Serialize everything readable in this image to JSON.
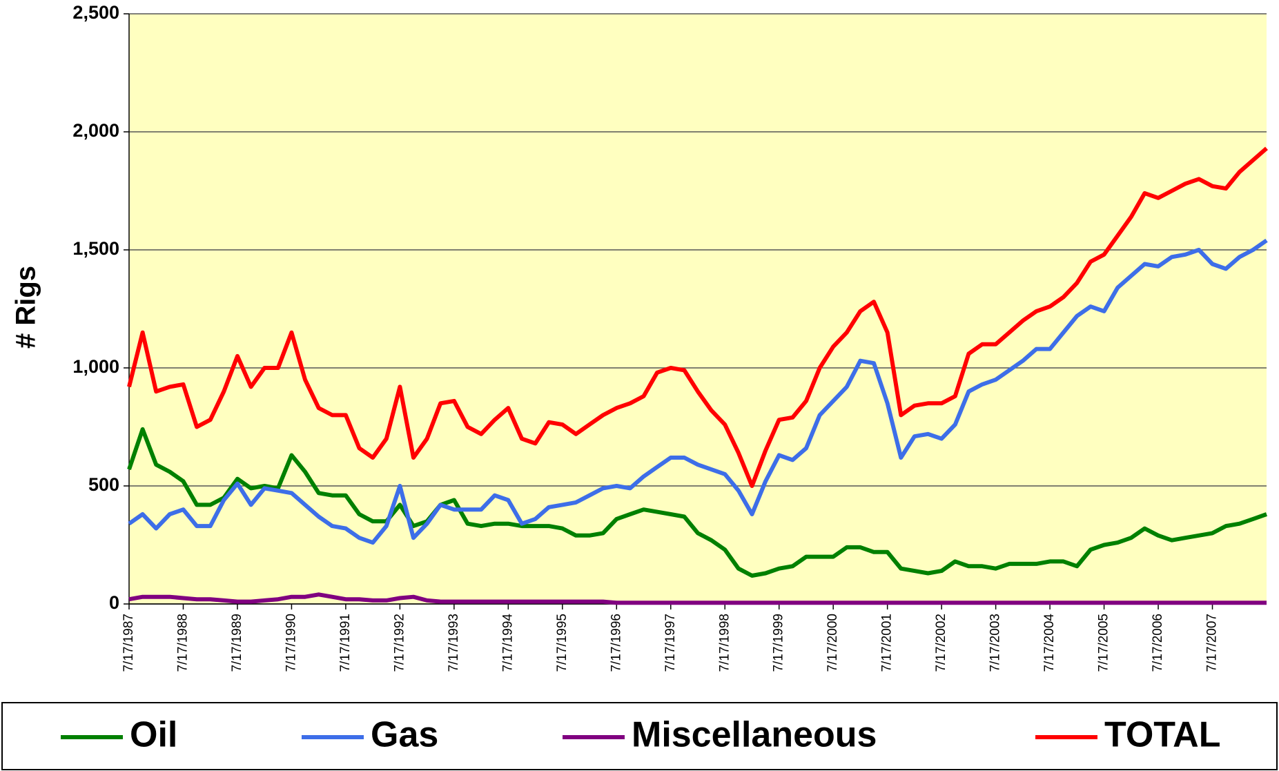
{
  "chart_data": {
    "type": "line",
    "y_label": "# Rigs",
    "categories": [
      "7/17/1987",
      null,
      null,
      null,
      "7/17/1988",
      null,
      null,
      null,
      "7/17/1989",
      null,
      null,
      null,
      "7/17/1990",
      null,
      null,
      null,
      "7/17/1991",
      null,
      null,
      null,
      "7/17/1992",
      null,
      null,
      null,
      "7/17/1993",
      null,
      null,
      null,
      "7/17/1994",
      null,
      null,
      null,
      "7/17/1995",
      null,
      null,
      null,
      "7/17/1996",
      null,
      null,
      null,
      "7/17/1997",
      null,
      null,
      null,
      "7/17/1998",
      null,
      null,
      null,
      "7/17/1999",
      null,
      null,
      null,
      "7/17/2000",
      null,
      null,
      null,
      "7/17/2001",
      null,
      null,
      null,
      "7/17/2002",
      null,
      null,
      null,
      "7/17/2003",
      null,
      null,
      null,
      "7/17/2004",
      null,
      null,
      null,
      "7/17/2005",
      null,
      null,
      null,
      "7/17/2006",
      null,
      null,
      null,
      "7/17/2007",
      null,
      null,
      null,
      null
    ],
    "series": [
      {
        "name": "Oil",
        "color": "#008000",
        "values": [
          570,
          740,
          590,
          560,
          520,
          420,
          420,
          450,
          530,
          490,
          500,
          490,
          630,
          560,
          470,
          460,
          460,
          380,
          350,
          350,
          420,
          330,
          350,
          420,
          440,
          340,
          330,
          340,
          340,
          330,
          330,
          330,
          320,
          290,
          290,
          300,
          360,
          380,
          400,
          390,
          380,
          370,
          300,
          270,
          230,
          150,
          120,
          130,
          150,
          160,
          200,
          200,
          200,
          240,
          240,
          220,
          220,
          150,
          140,
          130,
          140,
          180,
          160,
          160,
          150,
          170,
          170,
          170,
          180,
          180,
          160,
          230,
          250,
          260,
          280,
          320,
          290,
          270,
          280,
          290,
          300,
          330,
          340,
          360,
          380
        ]
      },
      {
        "name": "Gas",
        "color": "#3d6ee8",
        "values": [
          340,
          380,
          320,
          380,
          400,
          330,
          330,
          440,
          510,
          420,
          490,
          480,
          470,
          420,
          370,
          330,
          320,
          280,
          260,
          330,
          500,
          280,
          340,
          420,
          400,
          400,
          400,
          460,
          440,
          340,
          360,
          410,
          420,
          430,
          460,
          490,
          500,
          490,
          540,
          580,
          620,
          620,
          590,
          570,
          550,
          480,
          380,
          520,
          630,
          610,
          660,
          800,
          860,
          920,
          1030,
          1020,
          850,
          620,
          710,
          720,
          700,
          760,
          900,
          930,
          950,
          990,
          1030,
          1080,
          1080,
          1150,
          1220,
          1260,
          1240,
          1340,
          1390,
          1440,
          1430,
          1470,
          1480,
          1500,
          1440,
          1420,
          1470,
          1500,
          1540
        ]
      },
      {
        "name": "Miscellaneous",
        "color": "#800080",
        "values": [
          20,
          30,
          30,
          30,
          25,
          20,
          20,
          15,
          10,
          10,
          15,
          20,
          30,
          30,
          40,
          30,
          20,
          20,
          15,
          15,
          25,
          30,
          15,
          10,
          10,
          10,
          10,
          10,
          10,
          10,
          10,
          10,
          10,
          10,
          10,
          10,
          5,
          5,
          5,
          5,
          5,
          5,
          5,
          5,
          5,
          5,
          5,
          5,
          5,
          5,
          5,
          5,
          5,
          5,
          5,
          5,
          5,
          5,
          5,
          5,
          5,
          5,
          5,
          5,
          5,
          5,
          5,
          5,
          5,
          5,
          5,
          5,
          5,
          5,
          5,
          5,
          5,
          5,
          5,
          5,
          5,
          5,
          5,
          5,
          5
        ]
      },
      {
        "name": "TOTAL",
        "color": "#ff0000",
        "values": [
          920,
          1150,
          900,
          920,
          930,
          750,
          780,
          900,
          1050,
          920,
          1000,
          1000,
          1150,
          950,
          830,
          800,
          800,
          660,
          620,
          700,
          920,
          620,
          700,
          850,
          860,
          750,
          720,
          780,
          830,
          700,
          680,
          770,
          760,
          720,
          760,
          800,
          830,
          850,
          880,
          980,
          1000,
          990,
          900,
          820,
          760,
          640,
          500,
          650,
          780,
          790,
          860,
          1000,
          1090,
          1150,
          1240,
          1280,
          1150,
          800,
          840,
          850,
          850,
          880,
          1060,
          1100,
          1100,
          1150,
          1200,
          1240,
          1260,
          1300,
          1360,
          1450,
          1480,
          1560,
          1640,
          1740,
          1720,
          1750,
          1780,
          1800,
          1770,
          1760,
          1830,
          1880,
          1930
        ]
      }
    ],
    "ylim": [
      0,
      2500
    ],
    "yticks": [
      0,
      500,
      {
        "value": 1000,
        "label": "1,000"
      },
      {
        "value": 1500,
        "label": "1,500"
      },
      {
        "value": 2000,
        "label": "2,000"
      },
      {
        "value": 2500,
        "label": "2,500"
      }
    ],
    "grid": true,
    "legend": "bottom",
    "background": "#ffffc0"
  }
}
